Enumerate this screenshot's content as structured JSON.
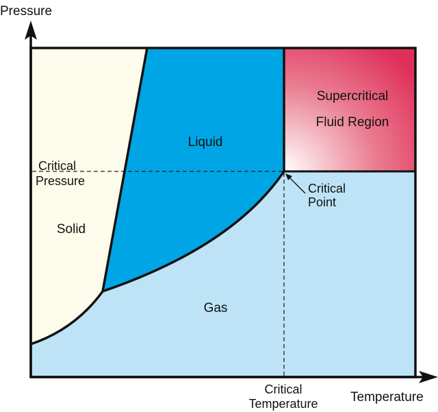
{
  "axes": {
    "y_label": "Pressure",
    "x_label": "Temperature"
  },
  "regions": {
    "solid": "Solid",
    "liquid": "Liquid",
    "gas": "Gas",
    "supercritical_line1": "Supercritical",
    "supercritical_line2": "Fluid Region"
  },
  "annotations": {
    "critical_pressure_line1": "Critical",
    "critical_pressure_line2": "Pressure",
    "critical_point_line1": "Critical",
    "critical_point_line2": "Point",
    "critical_temperature_line1": "Critical",
    "critical_temperature_line2": "Temperature"
  },
  "colors": {
    "solid": "#fdfbe9",
    "liquid": "#00a5e6",
    "gas": "#bee3f7",
    "supercritical": "#e0305a",
    "line": "#111111"
  }
}
